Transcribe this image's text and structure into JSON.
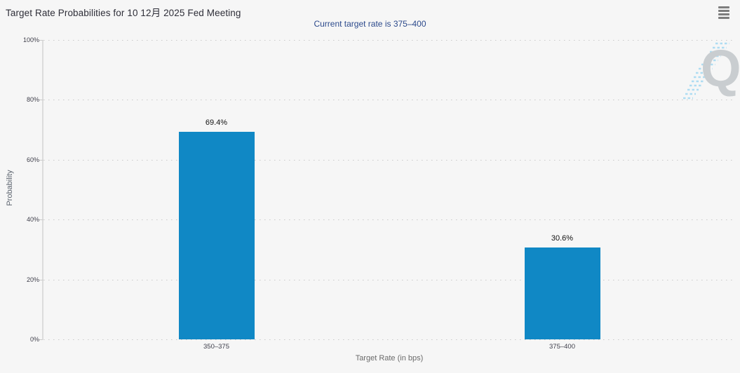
{
  "header": {
    "title": "Target Rate Probabilities for 10 12月 2025 Fed Meeting",
    "subtitle": "Current target rate is 375–400",
    "menu_icon": "hamburger-menu"
  },
  "watermark": {
    "letter": "Q"
  },
  "chart_data": {
    "type": "bar",
    "title": "Target Rate Probabilities for 10 12月 2025 Fed Meeting",
    "subtitle": "Current target rate is 375–400",
    "categories": [
      "350–375",
      "375–400"
    ],
    "values": [
      69.4,
      30.6
    ],
    "data_labels": [
      "69.4%",
      "30.6%"
    ],
    "xlabel": "Target Rate (in bps)",
    "ylabel": "Probability",
    "ylim": [
      0,
      100
    ],
    "yticks": [
      0,
      20,
      40,
      60,
      80,
      100
    ],
    "ytick_labels": [
      "0%",
      "20%",
      "40%",
      "60%",
      "80%",
      "100%"
    ],
    "grid": "horizontal dotted",
    "legend": "none",
    "bar_color": "#1088c5"
  },
  "colors": {
    "background": "#f6f6f6",
    "bar": "#1088c5",
    "title": "#2e2e38",
    "subtitle": "#2c4a8c",
    "axis_label": "#3e3e4a",
    "axis_title": "#666666",
    "gridline": "#c9c9c9",
    "watermark_q": "#c9cdd0",
    "watermark_dash": "#aedcf2",
    "menu_icon": "#7d7d7d"
  }
}
